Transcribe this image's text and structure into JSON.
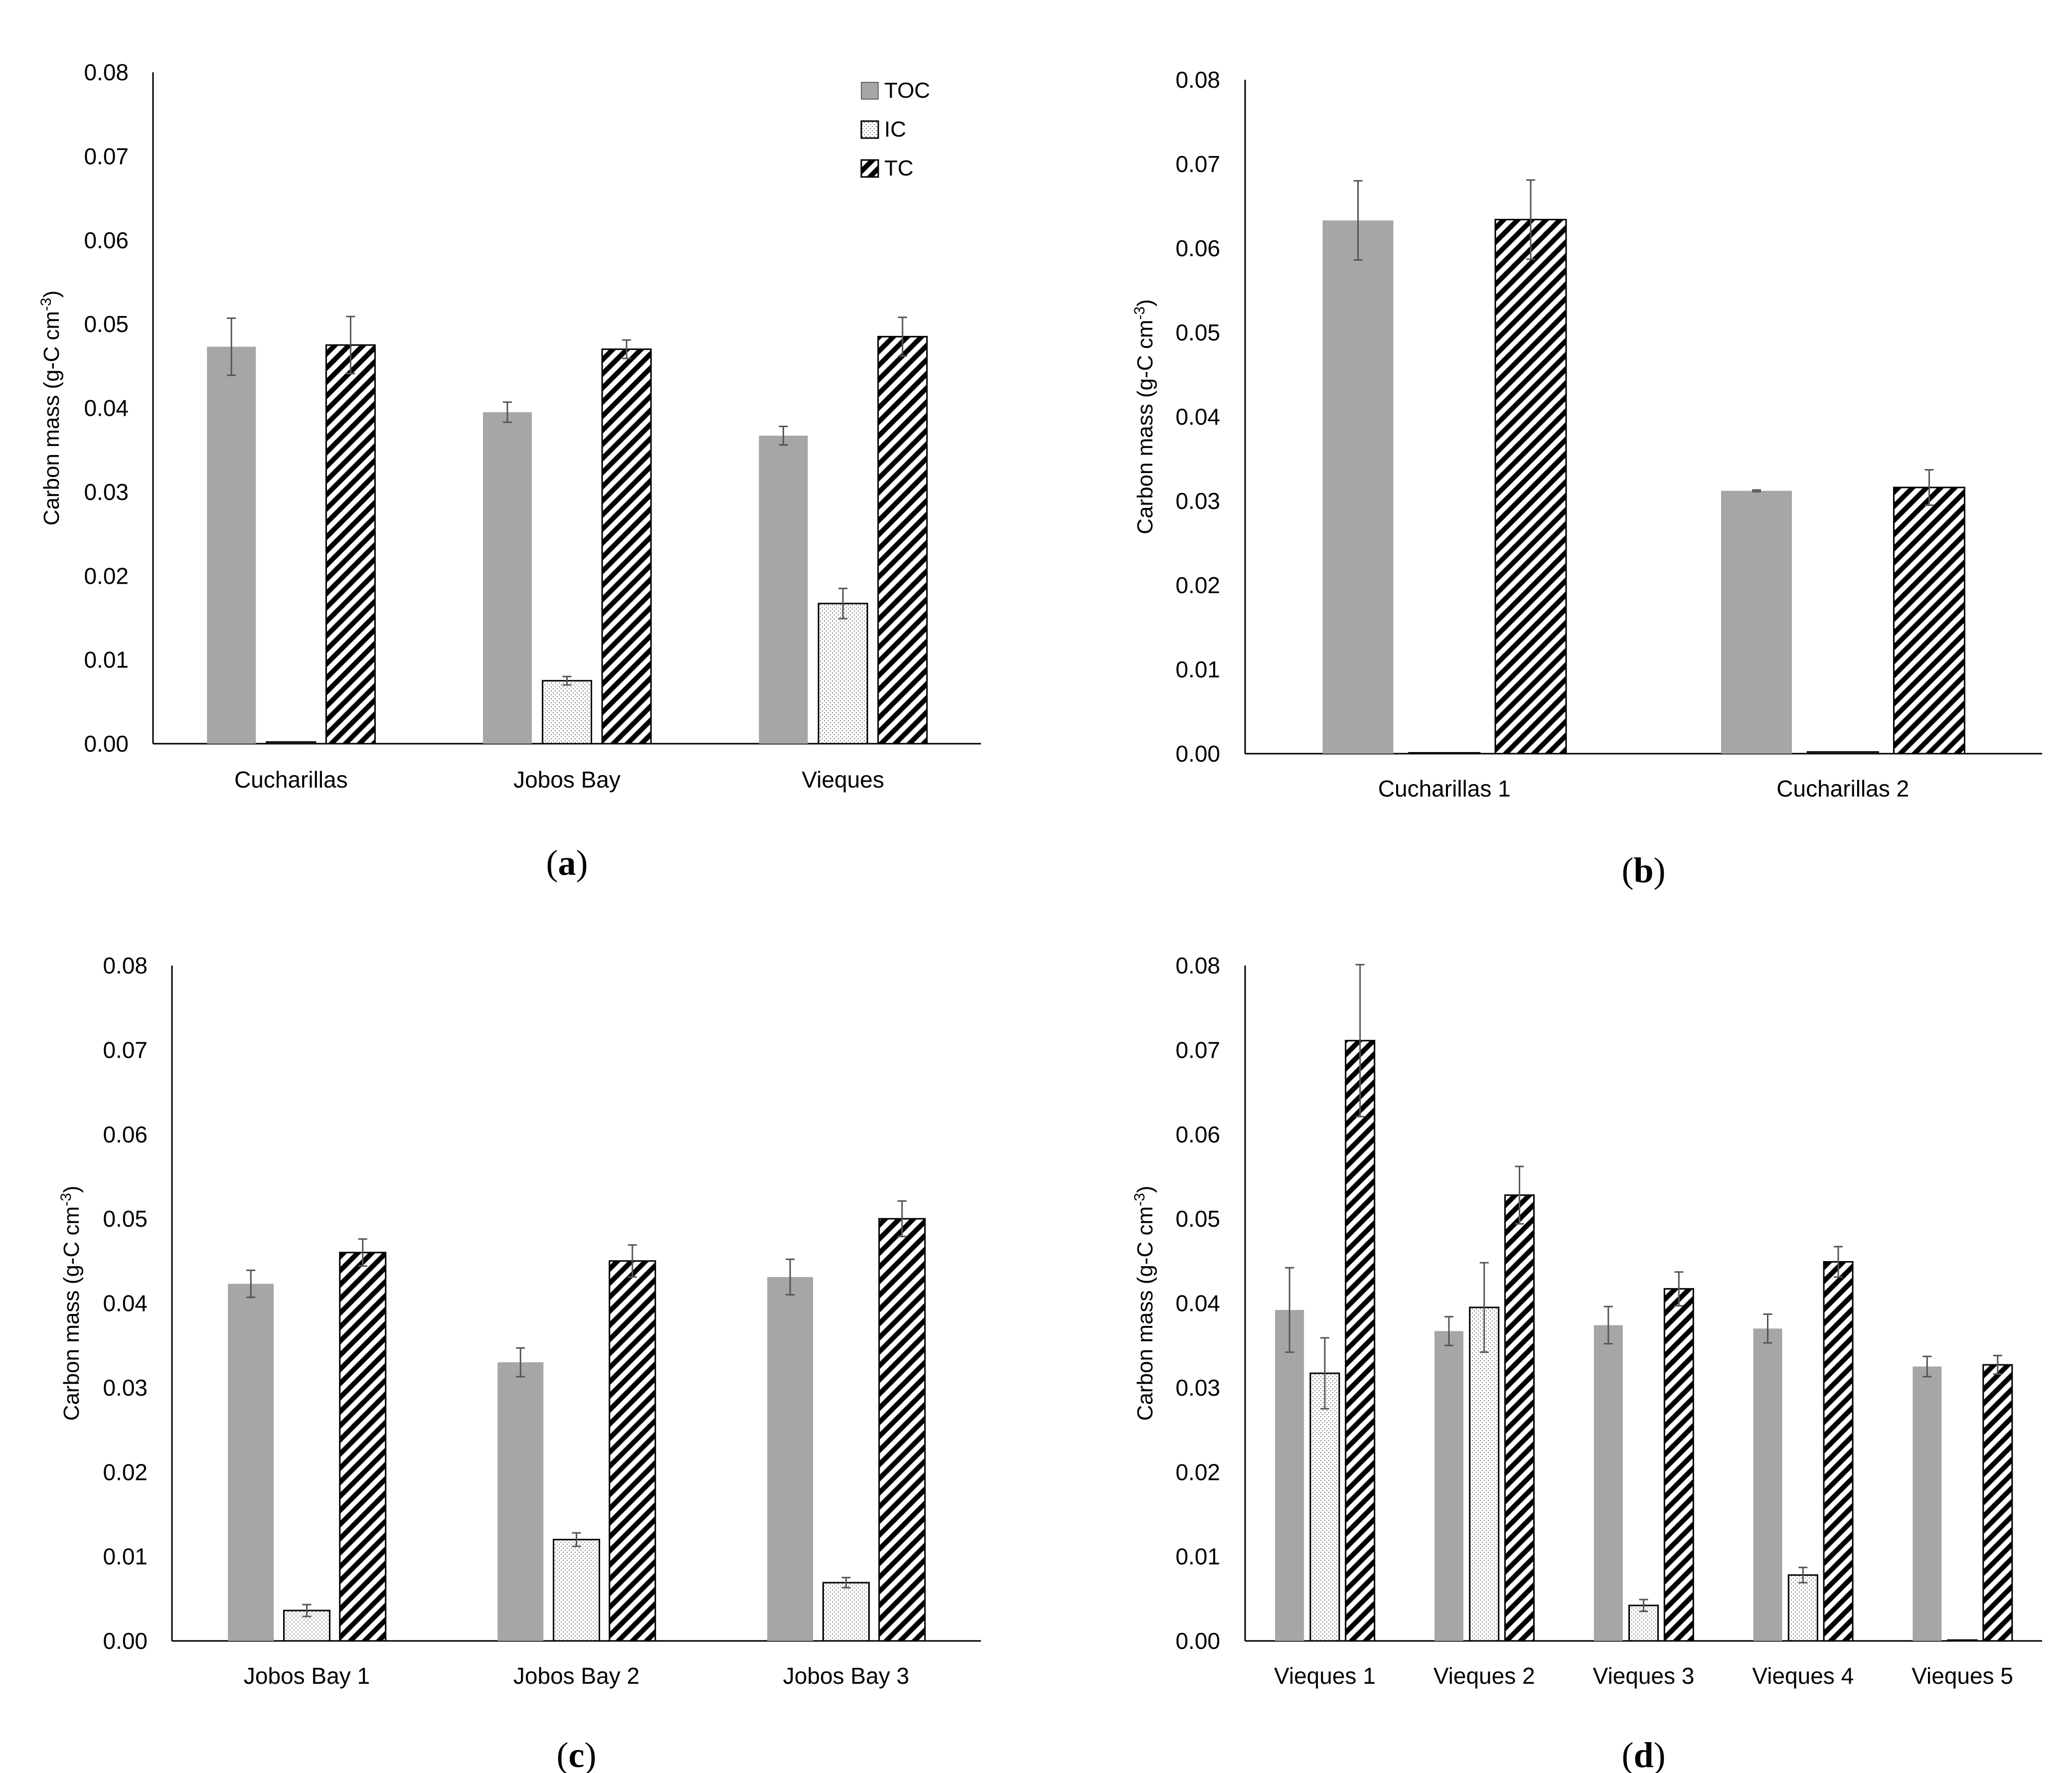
{
  "ylabel_main": "Carbon mass (g-C cm",
  "ylabel_sup": "-3",
  "ylabel_end": ")",
  "colors": {
    "toc": "#a6a6a6",
    "ic_fill": "#ffffff",
    "tc_stroke": "#000000",
    "error": "#555555"
  },
  "legend": [
    {
      "key": "toc",
      "label": "TOC",
      "icon": "solid-gray-swatch-icon"
    },
    {
      "key": "ic",
      "label": "IC",
      "icon": "dotted-swatch-icon"
    },
    {
      "key": "tc",
      "label": "TC",
      "icon": "hatched-swatch-icon"
    }
  ],
  "chart_data": [
    {
      "type": "bar",
      "panel_label": "a",
      "categories": [
        "Cucharillas",
        "Jobos Bay",
        "Vieques"
      ],
      "ylim": [
        0,
        0.08
      ],
      "yticks": [
        "0.00",
        "0.01",
        "0.02",
        "0.03",
        "0.04",
        "0.05",
        "0.06",
        "0.07",
        "0.08"
      ],
      "legend_position": "top-right",
      "series": [
        {
          "name": "TOC",
          "values": [
            0.0473,
            0.0395,
            0.0367
          ],
          "errors": [
            0.0034,
            0.0012,
            0.0011
          ]
        },
        {
          "name": "IC",
          "values": [
            0.0002,
            0.0075,
            0.0167
          ],
          "errors": [
            0,
            0.0005,
            0.0018
          ]
        },
        {
          "name": "TC",
          "values": [
            0.0475,
            0.047,
            0.0485
          ],
          "errors": [
            0.0034,
            0.0011,
            0.0023
          ]
        }
      ]
    },
    {
      "type": "bar",
      "panel_label": "b",
      "categories": [
        "Cucharillas 1",
        "Cucharillas 2"
      ],
      "ylim": [
        0,
        0.08
      ],
      "yticks": [
        "0.00",
        "0.01",
        "0.02",
        "0.03",
        "0.04",
        "0.05",
        "0.06",
        "0.07",
        "0.08"
      ],
      "series": [
        {
          "name": "TOC",
          "values": [
            0.0633,
            0.0312
          ],
          "errors": [
            0.0047,
            0.0001
          ]
        },
        {
          "name": "IC",
          "values": [
            0.0001,
            0.0002
          ],
          "errors": [
            0,
            0
          ]
        },
        {
          "name": "TC",
          "values": [
            0.0634,
            0.0316
          ],
          "errors": [
            0.0047,
            0.0021
          ]
        }
      ]
    },
    {
      "type": "bar",
      "panel_label": "c",
      "categories": [
        "Jobos Bay 1",
        "Jobos Bay 2",
        "Jobos Bay 3"
      ],
      "ylim": [
        0,
        0.08
      ],
      "yticks": [
        "0.00",
        "0.01",
        "0.02",
        "0.03",
        "0.04",
        "0.05",
        "0.06",
        "0.07",
        "0.08"
      ],
      "series": [
        {
          "name": "TOC",
          "values": [
            0.0423,
            0.033,
            0.0431
          ],
          "errors": [
            0.0016,
            0.0017,
            0.0021
          ]
        },
        {
          "name": "IC",
          "values": [
            0.0036,
            0.012,
            0.0069
          ],
          "errors": [
            0.0007,
            0.0008,
            0.0006
          ]
        },
        {
          "name": "TC",
          "values": [
            0.046,
            0.045,
            0.05
          ],
          "errors": [
            0.0016,
            0.0019,
            0.0021
          ]
        }
      ]
    },
    {
      "type": "bar",
      "panel_label": "d",
      "categories": [
        "Vieques 1",
        "Vieques 2",
        "Vieques 3",
        "Vieques 4",
        "Vieques 5"
      ],
      "ylim": [
        0,
        0.08
      ],
      "yticks": [
        "0.00",
        "0.01",
        "0.02",
        "0.03",
        "0.04",
        "0.05",
        "0.06",
        "0.07",
        "0.08"
      ],
      "series": [
        {
          "name": "TOC",
          "values": [
            0.0392,
            0.0367,
            0.0374,
            0.037,
            0.0325
          ],
          "errors": [
            0.005,
            0.0017,
            0.0022,
            0.0017,
            0.0012
          ]
        },
        {
          "name": "IC",
          "values": [
            0.0317,
            0.0395,
            0.0042,
            0.0078,
            0.0001
          ],
          "errors": [
            0.0042,
            0.0053,
            0.0007,
            0.0009,
            0
          ]
        },
        {
          "name": "TC",
          "values": [
            0.0711,
            0.0528,
            0.0417,
            0.0449,
            0.0327
          ],
          "errors": [
            0.009,
            0.0034,
            0.002,
            0.0018,
            0.0011
          ]
        }
      ]
    }
  ]
}
